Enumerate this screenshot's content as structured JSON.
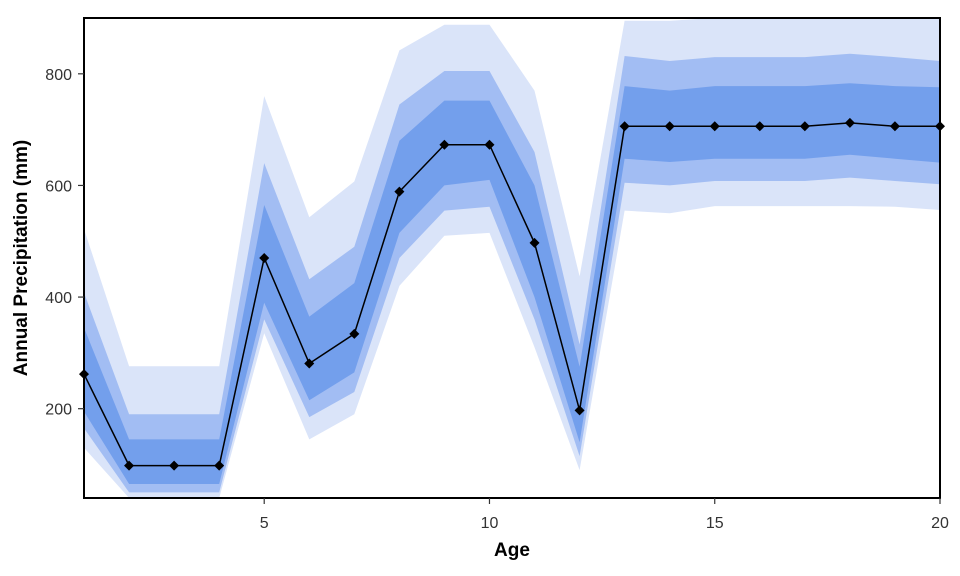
{
  "chart_data": {
    "type": "line",
    "title": "",
    "xlabel": "Age",
    "ylabel": "Annual Precipitation (mm)",
    "xlim": [
      1,
      20
    ],
    "ylim": [
      40,
      900
    ],
    "x_ticks": [
      5,
      10,
      15,
      20
    ],
    "y_ticks": [
      200,
      400,
      600,
      800
    ],
    "grid": false,
    "legend": "none",
    "colors": {
      "band_outer": "#dae4f9",
      "band_middle": "#a2bdf3",
      "band_inner": "#739fec",
      "line": "#000000",
      "frame": "#000000"
    },
    "x": [
      1,
      2,
      3,
      4,
      5,
      6,
      7,
      8,
      9,
      10,
      11,
      12,
      13,
      14,
      15,
      16,
      17,
      18,
      19,
      20
    ],
    "series": [
      {
        "role": "median",
        "marker": "diamond",
        "values": [
          262,
          98,
          98,
          98,
          470,
          281,
          334,
          589,
          673,
          673,
          497,
          197,
          706,
          706,
          706,
          706,
          706,
          712,
          706,
          706
        ]
      }
    ],
    "bands": [
      {
        "role": "outer",
        "lower": [
          130,
          40,
          40,
          40,
          335,
          145,
          190,
          420,
          510,
          515,
          310,
          90,
          555,
          550,
          563,
          563,
          563,
          563,
          562,
          556
        ],
        "upper": [
          522,
          276,
          276,
          276,
          760,
          543,
          607,
          842,
          888,
          888,
          770,
          437,
          895,
          895,
          900,
          900,
          900,
          900,
          900,
          900
        ]
      },
      {
        "role": "middle",
        "lower": [
          165,
          50,
          50,
          50,
          360,
          185,
          230,
          470,
          555,
          562,
          360,
          115,
          605,
          600,
          608,
          608,
          608,
          614,
          608,
          602
        ]
      },
      {
        "role": "middle_upper",
        "upper": [
          408,
          190,
          190,
          190,
          640,
          432,
          490,
          745,
          805,
          805,
          660,
          315,
          832,
          823,
          830,
          830,
          830,
          836,
          830,
          823
        ]
      },
      {
        "role": "inner",
        "lower": [
          195,
          65,
          65,
          65,
          390,
          215,
          265,
          515,
          600,
          610,
          400,
          140,
          648,
          642,
          648,
          648,
          648,
          655,
          648,
          641
        ],
        "upper": [
          345,
          145,
          145,
          145,
          565,
          365,
          425,
          680,
          752,
          752,
          600,
          275,
          778,
          770,
          778,
          778,
          778,
          783,
          778,
          776
        ]
      }
    ]
  }
}
